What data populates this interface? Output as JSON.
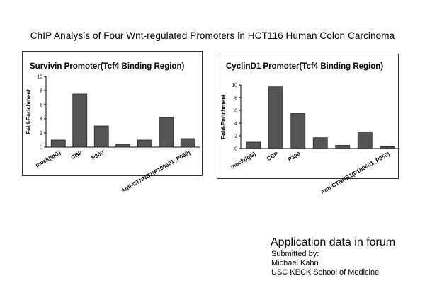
{
  "page": {
    "title": "ChIP Analysis of Four Wnt-regulated Promoters in HCT116 Human Colon Carcinoma"
  },
  "footer": {
    "heading": "Application data in forum",
    "lines": [
      "Submitted by:",
      "Michael Kahn",
      "USC KECK School of Medicine"
    ]
  },
  "colors": {
    "bar_fill": "#555555",
    "bar_stroke": "#222222",
    "axis": "#000000"
  },
  "chart_data": [
    {
      "type": "bar",
      "title": "Survivin Promoter(Tcf4 Binding Region)",
      "ylabel": "Fold-Enrichment",
      "xlabel": "",
      "ylim": [
        0,
        10
      ],
      "yticks": [
        0,
        2,
        4,
        6,
        8,
        10
      ],
      "categories": [
        "mock(IgG)",
        "CBP",
        "P300",
        "",
        "",
        "",
        "Anti-CTNNB1(P100601_P050)"
      ],
      "values": [
        1.0,
        7.5,
        3.0,
        0.4,
        1.0,
        4.2,
        1.2
      ],
      "grid": false,
      "legend": "none"
    },
    {
      "type": "bar",
      "title": "CyclinD1 Promoter(Tcf4 Binding Region)",
      "ylabel": "Fold-Enrichment",
      "xlabel": "",
      "ylim": [
        0,
        10
      ],
      "yticks": [
        0,
        2,
        4,
        6,
        8,
        10
      ],
      "categories": [
        "mock(IgG)",
        "CBP",
        "P300",
        "",
        "",
        "",
        "Anti-CTNNB1(P100601_P050)"
      ],
      "values": [
        1.0,
        9.7,
        5.5,
        1.7,
        0.5,
        2.6,
        0.3
      ],
      "grid": false,
      "legend": "none"
    }
  ]
}
